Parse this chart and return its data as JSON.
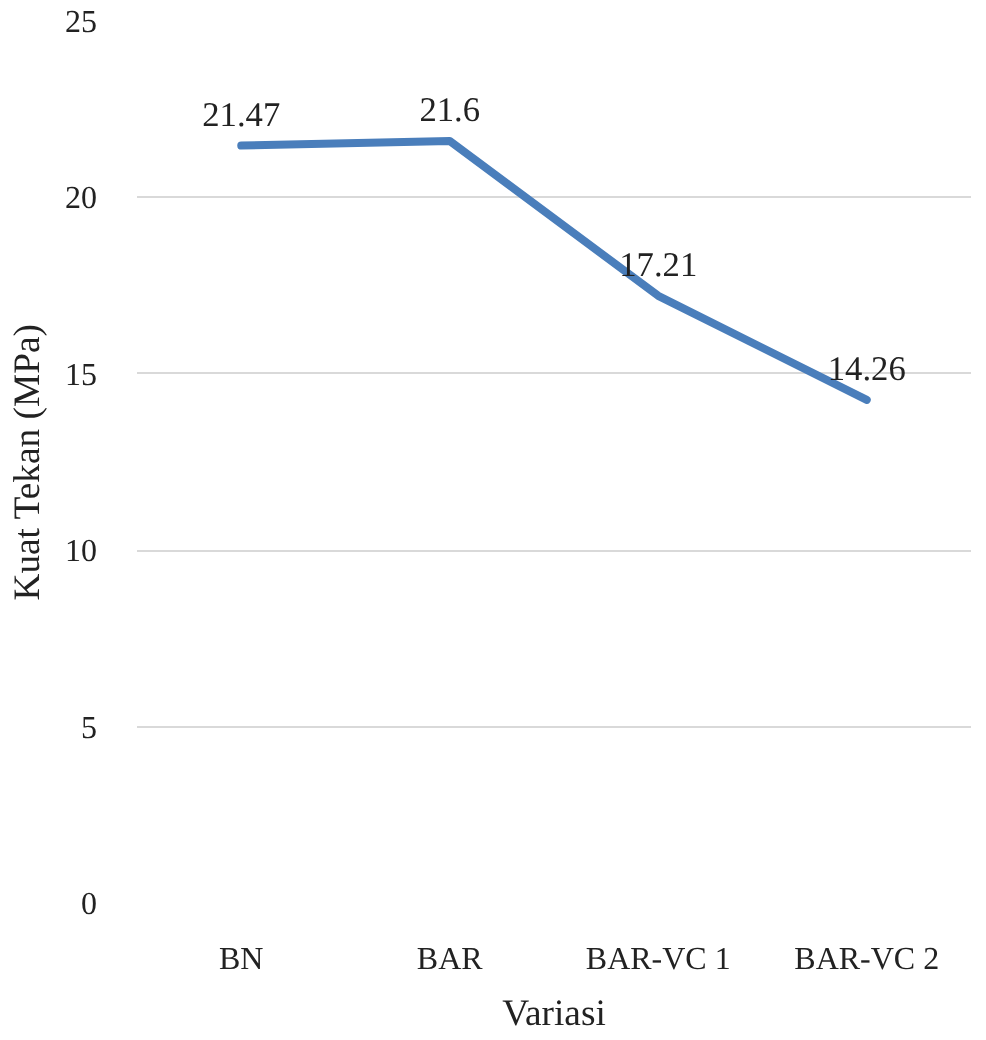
{
  "chart_data": {
    "type": "line",
    "xlabel": "Variasi",
    "ylabel": "Kuat Tekan (MPa)",
    "categories": [
      "BN",
      "BAR",
      "BAR-VC 1",
      "BAR-VC 2"
    ],
    "series": [
      {
        "color": "#4a7ebb",
        "values": [
          21.47,
          21.6,
          17.21,
          14.26
        ]
      }
    ],
    "ylim": [
      0,
      25
    ],
    "yticks": [
      0,
      5,
      10,
      15,
      20,
      25
    ],
    "grid": "y",
    "data_labels": true
  }
}
